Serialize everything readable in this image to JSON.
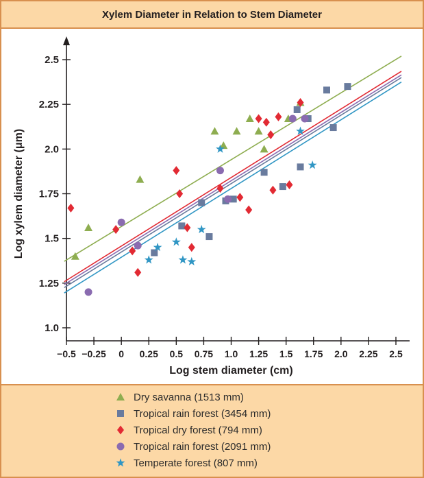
{
  "title": "Xylem Diameter in Relation to Stem Diameter",
  "colors": {
    "frame_border": "#d8904f",
    "panel_bg": "#fcd8a6",
    "ink": "#231f20"
  },
  "chart_data": {
    "type": "scatter",
    "title": "Xylem Diameter in Relation to Stem Diameter",
    "xlabel": "Log stem diameter (cm)",
    "ylabel": "Log xylem diameter (μm)",
    "xlim": [
      -0.5,
      2.5
    ],
    "ylim": [
      1.0,
      2.5
    ],
    "grid": false,
    "legend_position": "bottom",
    "xtick_values": [
      -0.5,
      -0.25,
      0,
      0.25,
      0.5,
      0.75,
      1.0,
      1.25,
      1.5,
      1.75,
      2.0,
      2.25,
      2.5
    ],
    "xtick_labels": [
      "−0.5",
      "−0.25",
      "0",
      "0.25",
      "0.5",
      "0.75",
      "1.0",
      "1.25",
      "1.5",
      "1.75",
      "2.0",
      "2.25",
      "2.5"
    ],
    "ytick_values": [
      1.0,
      1.25,
      1.5,
      1.75,
      2.0,
      2.25,
      2.5
    ],
    "ytick_labels": [
      "1.0",
      "1.25",
      "1.5",
      "1.75",
      "2.0",
      "2.25",
      "2.5"
    ],
    "series": [
      {
        "name": "Dry savanna (1513 mm)",
        "marker": "triangle",
        "color": "#8ead50",
        "points": [
          [
            -0.42,
            1.4
          ],
          [
            -0.3,
            1.56
          ],
          [
            0.17,
            1.83
          ],
          [
            0.85,
            2.1
          ],
          [
            0.93,
            2.02
          ],
          [
            1.05,
            2.1
          ],
          [
            1.17,
            2.17
          ],
          [
            1.25,
            2.1
          ],
          [
            1.3,
            2.0
          ],
          [
            1.52,
            2.17
          ],
          [
            1.63,
            2.26
          ]
        ],
        "trend": {
          "x": [
            -0.52,
            2.55
          ],
          "y": [
            1.372,
            2.52
          ]
        }
      },
      {
        "name": "Tropical rain forest (3454 mm)",
        "marker": "square",
        "color": "#697b9e",
        "points": [
          [
            0.3,
            1.42
          ],
          [
            0.55,
            1.57
          ],
          [
            0.73,
            1.7
          ],
          [
            0.8,
            1.51
          ],
          [
            0.95,
            1.71
          ],
          [
            1.02,
            1.72
          ],
          [
            1.3,
            1.87
          ],
          [
            1.47,
            1.79
          ],
          [
            1.6,
            2.22
          ],
          [
            1.63,
            1.9
          ],
          [
            1.7,
            2.17
          ],
          [
            1.87,
            2.33
          ],
          [
            1.93,
            2.12
          ],
          [
            2.06,
            2.35
          ]
        ],
        "trend": {
          "x": [
            -0.52,
            2.55
          ],
          "y": [
            1.225,
            2.4
          ]
        }
      },
      {
        "name": "Tropical dry forest (794 mm)",
        "marker": "diamond",
        "color": "#e22a33",
        "points": [
          [
            -0.46,
            1.67
          ],
          [
            -0.05,
            1.55
          ],
          [
            0.1,
            1.43
          ],
          [
            0.15,
            1.31
          ],
          [
            0.5,
            1.88
          ],
          [
            0.53,
            1.75
          ],
          [
            0.6,
            1.56
          ],
          [
            0.64,
            1.45
          ],
          [
            0.9,
            1.78
          ],
          [
            1.08,
            1.73
          ],
          [
            1.16,
            1.66
          ],
          [
            1.25,
            2.17
          ],
          [
            1.32,
            2.15
          ],
          [
            1.36,
            2.08
          ],
          [
            1.38,
            1.77
          ],
          [
            1.43,
            2.18
          ],
          [
            1.53,
            1.8
          ],
          [
            1.63,
            2.26
          ]
        ],
        "trend": {
          "x": [
            -0.52,
            2.55
          ],
          "y": [
            1.258,
            2.435
          ]
        }
      },
      {
        "name": "Tropical rain forest (2091 mm)",
        "marker": "circle",
        "color": "#8a6bb0",
        "points": [
          [
            -0.3,
            1.2
          ],
          [
            0.0,
            1.59
          ],
          [
            0.15,
            1.46
          ],
          [
            0.9,
            1.88
          ],
          [
            0.97,
            1.72
          ],
          [
            1.56,
            2.17
          ],
          [
            1.67,
            2.17
          ]
        ],
        "trend": {
          "x": [
            -0.52,
            2.55
          ],
          "y": [
            1.242,
            2.415
          ]
        }
      },
      {
        "name": "Temperate forest (807 mm)",
        "marker": "star",
        "color": "#3096c4",
        "points": [
          [
            0.25,
            1.38
          ],
          [
            0.33,
            1.45
          ],
          [
            0.5,
            1.48
          ],
          [
            0.56,
            1.38
          ],
          [
            0.64,
            1.37
          ],
          [
            0.73,
            1.55
          ],
          [
            0.9,
            2.0
          ],
          [
            1.63,
            2.1
          ],
          [
            1.74,
            1.91
          ]
        ],
        "trend": {
          "x": [
            -0.52,
            2.55
          ],
          "y": [
            1.195,
            2.375
          ]
        }
      }
    ]
  }
}
